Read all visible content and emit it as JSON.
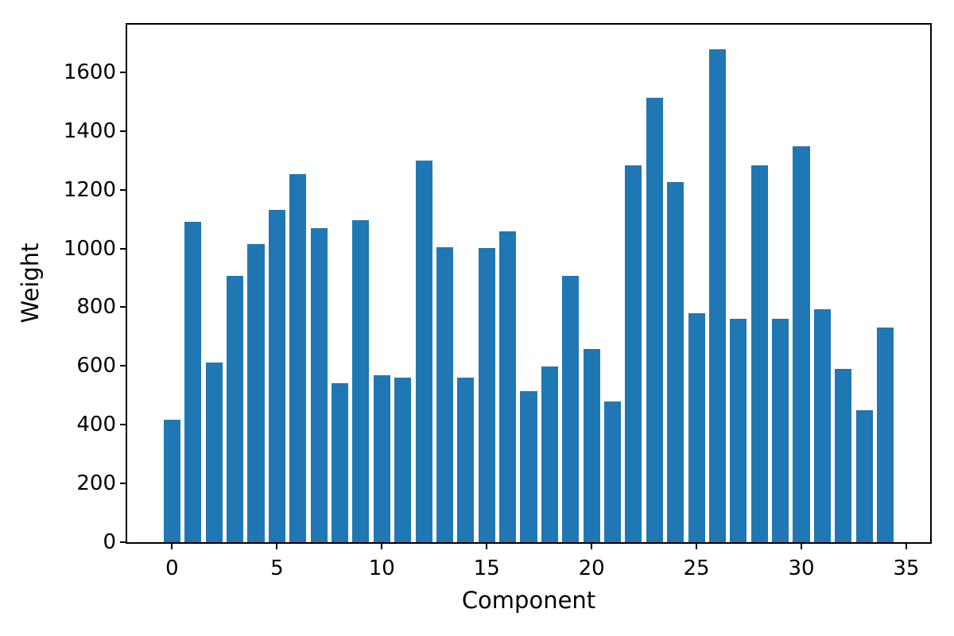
{
  "chart_data": {
    "type": "bar",
    "title": "",
    "xlabel": "Component",
    "ylabel": "Weight",
    "x": [
      0,
      1,
      2,
      3,
      4,
      5,
      6,
      7,
      8,
      9,
      10,
      11,
      12,
      13,
      14,
      15,
      16,
      17,
      18,
      19,
      20,
      21,
      22,
      23,
      24,
      25,
      26,
      27,
      28,
      29,
      30,
      31,
      32,
      33,
      34
    ],
    "values": [
      416,
      1092,
      612,
      908,
      1015,
      1132,
      1253,
      1069,
      542,
      1096,
      568,
      560,
      1300,
      1004,
      559,
      1001,
      1057,
      514,
      598,
      906,
      659,
      479,
      1283,
      1512,
      1226,
      780,
      1677,
      760,
      1282,
      760,
      1347,
      793,
      591,
      449,
      731
    ],
    "bar_color": "#1f77b4",
    "bar_width": 0.8,
    "x_ticks": [
      0,
      5,
      10,
      15,
      20,
      25,
      30,
      35
    ],
    "y_ticks": [
      0,
      200,
      400,
      600,
      800,
      1000,
      1200,
      1400,
      1600
    ],
    "xlim": [
      -2.14,
      36.14
    ],
    "ylim": [
      0,
      1762
    ],
    "grid": false,
    "legend_position": "none",
    "axis_color": "#000000",
    "background_color": "#ffffff"
  }
}
